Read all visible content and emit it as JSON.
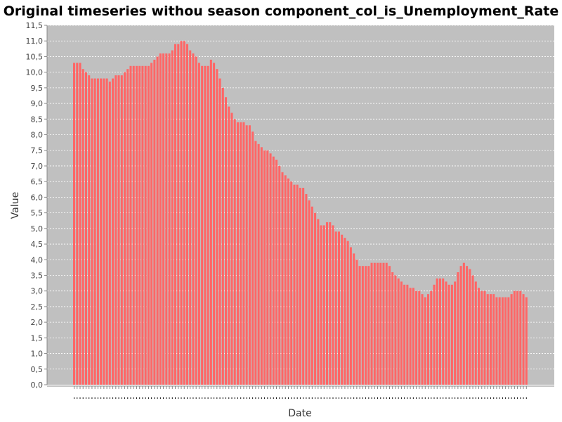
{
  "chart_data": {
    "type": "bar",
    "title": "Original timeseries withou season component_col_is_Unemployment_Rate",
    "xlabel": "Date",
    "ylabel": "Value",
    "ylim": [
      0,
      11.5
    ],
    "y_ticks": [
      "0,0",
      "0,5",
      "1,0",
      "1,5",
      "2,0",
      "2,5",
      "3,0",
      "3,5",
      "4,0",
      "4,5",
      "5,0",
      "5,5",
      "6,0",
      "6,5",
      "7,0",
      "7,5",
      "8,0",
      "8,5",
      "9,0",
      "9,5",
      "10,0",
      "10,5",
      "11,0",
      "11,5"
    ],
    "grid": true,
    "legend": "none",
    "colors": {
      "plot_background": "#c0c0c0",
      "bar": "#ff6666",
      "grid": "#ffffff"
    },
    "series": [
      {
        "values": [
          10.3,
          10.3,
          10.3,
          10.1,
          10.0,
          9.9,
          9.8,
          9.8,
          9.8,
          9.8,
          9.8,
          9.8,
          9.7,
          9.8,
          9.9,
          9.9,
          9.9,
          10.0,
          10.1,
          10.2,
          10.2,
          10.2,
          10.2,
          10.2,
          10.2,
          10.2,
          10.3,
          10.4,
          10.5,
          10.6,
          10.6,
          10.6,
          10.6,
          10.7,
          10.9,
          10.9,
          11.0,
          11.0,
          10.9,
          10.7,
          10.6,
          10.5,
          10.3,
          10.2,
          10.2,
          10.2,
          10.4,
          10.3,
          10.1,
          9.8,
          9.5,
          9.2,
          8.9,
          8.7,
          8.5,
          8.4,
          8.4,
          8.4,
          8.3,
          8.3,
          8.1,
          7.8,
          7.7,
          7.6,
          7.5,
          7.5,
          7.4,
          7.3,
          7.2,
          7.0,
          6.8,
          6.7,
          6.6,
          6.5,
          6.4,
          6.4,
          6.3,
          6.3,
          6.1,
          5.9,
          5.7,
          5.5,
          5.3,
          5.1,
          5.1,
          5.2,
          5.2,
          5.1,
          4.9,
          4.9,
          4.8,
          4.7,
          4.6,
          4.4,
          4.2,
          4.0,
          3.8,
          3.8,
          3.8,
          3.8,
          3.9,
          3.9,
          3.9,
          3.9,
          3.9,
          3.9,
          3.8,
          3.6,
          3.5,
          3.4,
          3.3,
          3.2,
          3.2,
          3.1,
          3.1,
          3.0,
          3.0,
          2.9,
          2.8,
          2.9,
          3.0,
          3.2,
          3.4,
          3.4,
          3.4,
          3.3,
          3.2,
          3.2,
          3.3,
          3.6,
          3.8,
          3.9,
          3.8,
          3.7,
          3.5,
          3.3,
          3.1,
          3.0,
          3.0,
          2.9,
          2.9,
          2.9,
          2.8,
          2.8,
          2.8,
          2.8,
          2.8,
          2.9,
          3.0,
          3.0,
          3.0,
          2.9,
          2.8
        ]
      }
    ]
  }
}
